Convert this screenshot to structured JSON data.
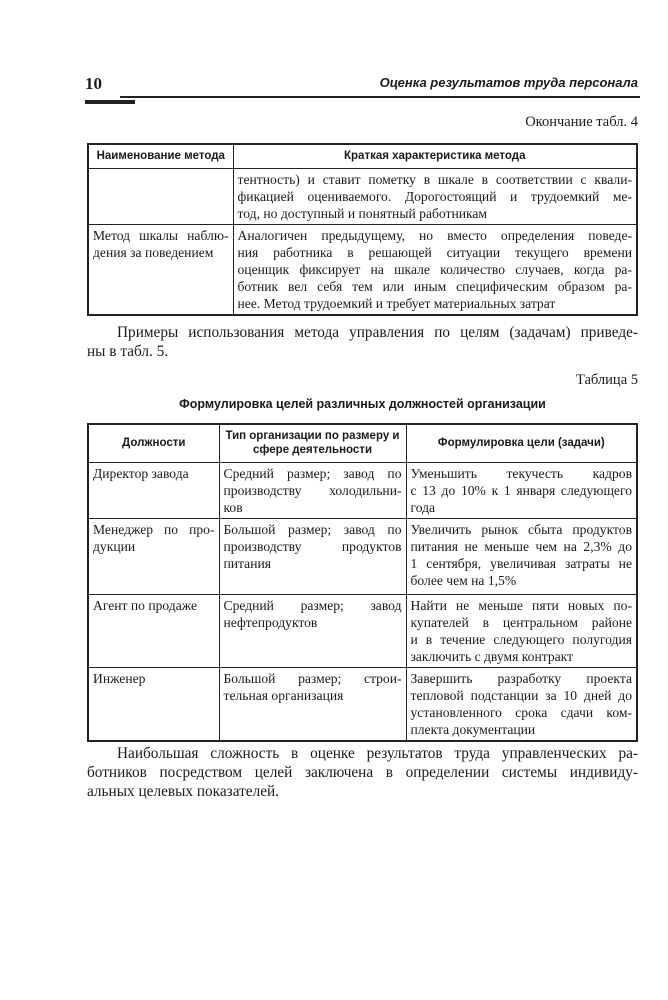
{
  "header": {
    "page_number": "10",
    "running_title": "Оценка результатов труда персонала"
  },
  "table4": {
    "caption": "Окончание табл. 4",
    "columns": [
      "Наименование метода",
      "Краткая характеристика метода"
    ],
    "rows": [
      {
        "name": [],
        "desc": [
          "тентность) и ставит пометку в шкале в соответствии с квали-",
          "фикацией оцениваемого. Дорогостоящий и трудоемкий ме-",
          "тод, но доступный и понятный работникам"
        ]
      },
      {
        "name": [
          "Метод шкалы наблю-",
          "дения за поведением"
        ],
        "desc": [
          "Аналогичен предыдущему, но вместо определения поведе-",
          "ния работника в решающей ситуации текущего времени",
          "оценщик фиксирует на шкале количество случаев, когда ра-",
          "ботник вел себя тем или иным специфическим образом ра-",
          "нее. Метод трудоемкий и требует материальных затрат"
        ]
      }
    ]
  },
  "paragraph1": [
    "Примеры использования метода управления по целям (задачам) приведе-",
    "ны в табл. 5."
  ],
  "table5": {
    "caption": "Таблица 5",
    "title": "Формулировка целей различных должностей организации",
    "columns": [
      "Должности",
      "Тип организации по размеру и сфере деятельности",
      "Формулировка цели (задачи)"
    ],
    "rows": [
      {
        "position": [
          "Директор завода"
        ],
        "type": [
          "Средний размер; завод по",
          "производству холодильни-",
          "ков"
        ],
        "goal": [
          "Уменьшить текучесть кадров",
          "с 13 до 10% к 1 января следующего",
          "года"
        ]
      },
      {
        "position": [
          "Менеджер по про-",
          "дукции"
        ],
        "type": [
          "Большой размер; завод по",
          "производству продуктов",
          "питания"
        ],
        "goal": [
          "Увеличить рынок сбыта продуктов",
          "питания не меньше чем на 2,3% до",
          "1 сентября, увеличивая затраты не",
          "более чем на 1,5%"
        ]
      },
      {
        "position": [
          "Агент по продаже"
        ],
        "type": [
          "Средний размер; завод",
          "нефтепродуктов"
        ],
        "goal": [
          "Найти не меньше пяти новых по-",
          "купателей в центральном районе",
          "и в течение следующего полугодия",
          "заключить с двумя контракт"
        ]
      },
      {
        "position": [
          "Инженер"
        ],
        "type": [
          "Большой размер; строи-",
          "тельная организация"
        ],
        "goal": [
          "Завершить разработку проекта",
          "тепловой подстанции за 10 дней до",
          "установленного срока сдачи ком-",
          "плекта документации"
        ]
      }
    ]
  },
  "paragraph2": [
    "Наибольшая сложность в оценке результатов труда управленческих ра-",
    "ботников посредством целей заключена в определении системы индивиду-",
    "альных целевых показателей."
  ]
}
